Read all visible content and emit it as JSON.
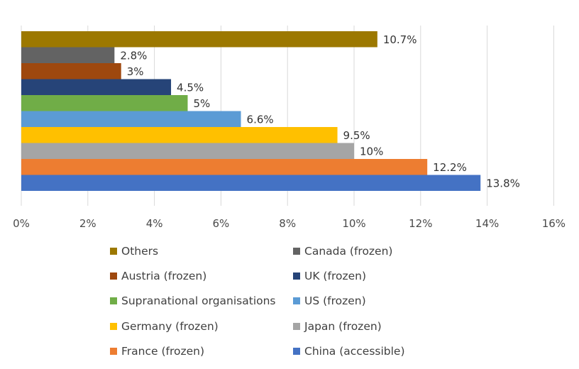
{
  "chart_data": {
    "type": "bar",
    "orientation": "horizontal",
    "title": "",
    "xlabel": "",
    "ylabel": "",
    "xlim": [
      0,
      16
    ],
    "x_ticks": [
      0,
      2,
      4,
      6,
      8,
      10,
      12,
      14,
      16
    ],
    "tick_suffix": "%",
    "grid": true,
    "legend_position": "bottom",
    "series": [
      {
        "name": "Others",
        "value": 10.7,
        "label": "10.7%",
        "color": "#9C7800"
      },
      {
        "name": "Canada (frozen)",
        "value": 2.8,
        "label": "2.8%",
        "color": "#636363"
      },
      {
        "name": "Austria (frozen)",
        "value": 3.0,
        "label": "3%",
        "color": "#9E480E"
      },
      {
        "name": "UK (frozen)",
        "value": 4.5,
        "label": "4.5%",
        "color": "#264478"
      },
      {
        "name": "Supranational organisations",
        "value": 5.0,
        "label": "5%",
        "color": "#70AD47"
      },
      {
        "name": "US (frozen)",
        "value": 6.6,
        "label": "6.6%",
        "color": "#5B9BD5"
      },
      {
        "name": "Germany (frozen)",
        "value": 9.5,
        "label": "9.5%",
        "color": "#FFC000"
      },
      {
        "name": "Japan (frozen)",
        "value": 10.0,
        "label": "10%",
        "color": "#A5A5A5"
      },
      {
        "name": "France (frozen)",
        "value": 12.2,
        "label": "12.2%",
        "color": "#ED7D31"
      },
      {
        "name": "China (accessible)",
        "value": 13.8,
        "label": "13.8%",
        "color": "#4472C4"
      }
    ]
  }
}
